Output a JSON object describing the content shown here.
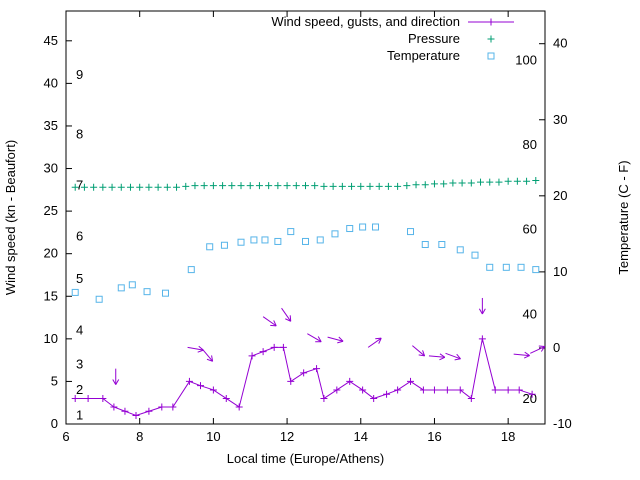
{
  "chart_data": {
    "type": "line",
    "xlabel": "Local time (Europe/Athens)",
    "ylabel_left": "Wind speed (kn - Beaufort)",
    "ylabel_right": "Temperature (C - F)",
    "x_range": [
      6,
      19
    ],
    "x_ticks": [
      6,
      8,
      10,
      12,
      14,
      16,
      18
    ],
    "yleft_range": [
      0,
      48.5
    ],
    "yleft_ticks": [
      0,
      5,
      10,
      15,
      20,
      25,
      30,
      35,
      40,
      45
    ],
    "yright_range": [
      -10,
      44.3
    ],
    "yright_ticks": [
      -10,
      0,
      10,
      20,
      30,
      40
    ],
    "grid": false,
    "legend_position": "top-right-inside",
    "beaufort_labels": [
      {
        "label": "1",
        "kn": 1
      },
      {
        "label": "2",
        "kn": 4
      },
      {
        "label": "3",
        "kn": 7
      },
      {
        "label": "4",
        "kn": 11
      },
      {
        "label": "5",
        "kn": 17
      },
      {
        "label": "6",
        "kn": 22
      },
      {
        "label": "7",
        "kn": 28
      },
      {
        "label": "8",
        "kn": 34
      },
      {
        "label": "9",
        "kn": 41
      }
    ],
    "fahrenheit_labels": [
      {
        "label": "20",
        "c": -6.7
      },
      {
        "label": "40",
        "c": 4.4
      },
      {
        "label": "60",
        "c": 15.6
      },
      {
        "label": "80",
        "c": 26.7
      },
      {
        "label": "100",
        "c": 37.8
      }
    ],
    "legend": [
      {
        "label": "Wind speed, gusts, and direction",
        "color": "#9400d3",
        "sample": "line-plus"
      },
      {
        "label": "Pressure",
        "color": "#009e73",
        "sample": "plus"
      },
      {
        "label": "Temperature",
        "color": "#56b4e9",
        "sample": "square"
      }
    ],
    "series": [
      {
        "name": "wind-speed",
        "axis": "left",
        "color": "#9400d3",
        "style": "line-plus",
        "x": [
          6.25,
          6.6,
          7.0,
          7.3,
          7.6,
          7.9,
          8.25,
          8.6,
          8.9,
          9.35,
          9.65,
          10.0,
          10.35,
          10.7,
          11.05,
          11.35,
          11.65,
          11.9,
          12.1,
          12.45,
          12.8,
          13.0,
          13.35,
          13.7,
          14.05,
          14.35,
          14.7,
          15.0,
          15.35,
          15.7,
          16.0,
          16.35,
          16.7,
          17.0,
          17.3,
          17.65,
          18.0,
          18.3,
          18.65
        ],
        "y": [
          3,
          3,
          3,
          2,
          1.5,
          1,
          1.5,
          2,
          2,
          5,
          4.5,
          4,
          3,
          2,
          8,
          8.5,
          9,
          9,
          5,
          6,
          6.5,
          3,
          4,
          5,
          4,
          3,
          3.5,
          4,
          5,
          4,
          4,
          4,
          4,
          3,
          10,
          4,
          4,
          4,
          3.5
        ]
      },
      {
        "name": "pressure",
        "axis": "left",
        "color": "#009e73",
        "style": "plus",
        "x": [
          6.25,
          6.5,
          6.75,
          7.0,
          7.25,
          7.5,
          7.75,
          8.0,
          8.25,
          8.5,
          8.75,
          9.0,
          9.25,
          9.5,
          9.75,
          10.0,
          10.25,
          10.5,
          10.75,
          11.0,
          11.25,
          11.5,
          11.75,
          12.0,
          12.25,
          12.5,
          12.75,
          13.0,
          13.25,
          13.5,
          13.75,
          14.0,
          14.25,
          14.5,
          14.75,
          15.0,
          15.25,
          15.5,
          15.75,
          16.0,
          16.25,
          16.5,
          16.75,
          17.0,
          17.25,
          17.5,
          17.75,
          18.0,
          18.25,
          18.5,
          18.75
        ],
        "y": [
          27.8,
          27.8,
          27.8,
          27.8,
          27.8,
          27.8,
          27.8,
          27.8,
          27.8,
          27.8,
          27.8,
          27.8,
          27.9,
          28.0,
          28.0,
          28.0,
          28.0,
          28.0,
          28.0,
          28.0,
          28.0,
          28.0,
          28.0,
          28.0,
          28.0,
          28.0,
          28.0,
          27.9,
          27.9,
          27.9,
          27.9,
          27.9,
          27.9,
          27.9,
          27.9,
          27.9,
          28.0,
          28.1,
          28.1,
          28.2,
          28.2,
          28.3,
          28.3,
          28.3,
          28.4,
          28.4,
          28.4,
          28.5,
          28.5,
          28.5,
          28.6
        ]
      },
      {
        "name": "temperature",
        "axis": "right",
        "color": "#56b4e9",
        "style": "square",
        "x": [
          6.25,
          6.9,
          7.5,
          7.8,
          8.2,
          8.7,
          9.4,
          9.9,
          10.3,
          10.75,
          11.1,
          11.4,
          11.75,
          12.1,
          12.5,
          12.9,
          13.3,
          13.7,
          14.05,
          14.4,
          15.35,
          15.75,
          16.2,
          16.7,
          17.1,
          17.5,
          17.95,
          18.35,
          18.75
        ],
        "y": [
          7.3,
          6.4,
          7.9,
          8.3,
          7.4,
          7.2,
          10.3,
          13.3,
          13.5,
          13.9,
          14.2,
          14.2,
          14.0,
          15.3,
          14.0,
          14.2,
          15.0,
          15.7,
          15.9,
          15.9,
          15.3,
          13.6,
          13.6,
          12.9,
          12.2,
          10.6,
          10.6,
          10.6,
          10.3
        ]
      }
    ],
    "wind_direction_arrows": [
      {
        "x": 7.35,
        "y": 6.5,
        "angle_deg": -90
      },
      {
        "x": 9.3,
        "y": 9.0,
        "angle_deg": -10
      },
      {
        "x": 9.7,
        "y": 8.8,
        "angle_deg": -50
      },
      {
        "x": 11.35,
        "y": 12.6,
        "angle_deg": -35
      },
      {
        "x": 11.85,
        "y": 13.6,
        "angle_deg": -55
      },
      {
        "x": 12.55,
        "y": 10.6,
        "angle_deg": -30
      },
      {
        "x": 13.1,
        "y": 10.2,
        "angle_deg": -15
      },
      {
        "x": 14.2,
        "y": 9.0,
        "angle_deg": 35
      },
      {
        "x": 15.4,
        "y": 9.2,
        "angle_deg": -40
      },
      {
        "x": 15.85,
        "y": 8.0,
        "angle_deg": -5
      },
      {
        "x": 16.3,
        "y": 8.3,
        "angle_deg": -20
      },
      {
        "x": 17.3,
        "y": 14.8,
        "angle_deg": -90
      },
      {
        "x": 18.15,
        "y": 8.2,
        "angle_deg": -5
      },
      {
        "x": 18.6,
        "y": 8.3,
        "angle_deg": 25
      }
    ]
  }
}
